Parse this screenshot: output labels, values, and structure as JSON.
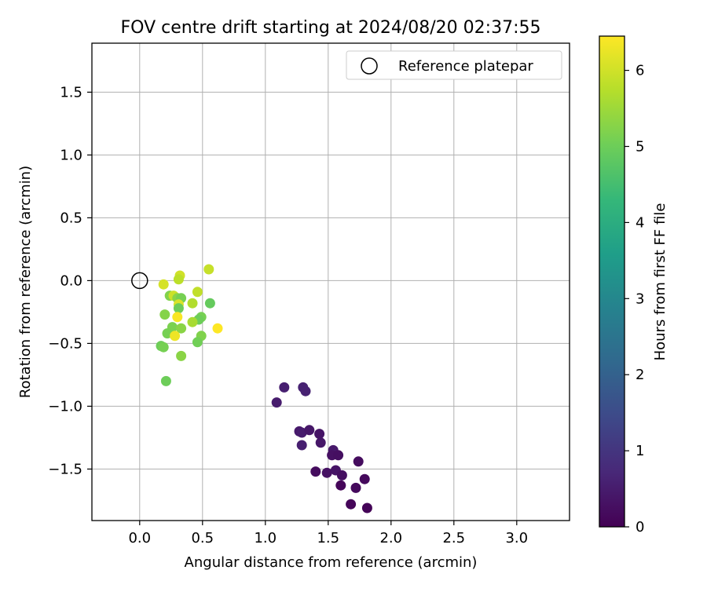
{
  "chart_data": {
    "type": "scatter",
    "title": "FOV centre drift starting at 2024/08/20 02:37:55",
    "xlabel": "Angular distance from reference (arcmin)",
    "ylabel": "Rotation from reference (arcmin)",
    "xlim": [
      -0.38,
      3.42
    ],
    "ylim": [
      -1.91,
      1.89
    ],
    "x_ticks": [
      0.0,
      0.5,
      1.0,
      1.5,
      2.0,
      2.5,
      3.0
    ],
    "x_tick_labels": [
      "0.0",
      "0.5",
      "1.0",
      "1.5",
      "2.0",
      "2.5",
      "3.0"
    ],
    "y_ticks": [
      -1.5,
      -1.0,
      -0.5,
      0.0,
      0.5,
      1.0,
      1.5
    ],
    "y_tick_labels": [
      "−1.5",
      "−1.0",
      "−0.5",
      "0.0",
      "0.5",
      "1.0",
      "1.5"
    ],
    "grid": true,
    "legend": {
      "position": "upper-right",
      "entries": [
        {
          "label": "Reference platepar",
          "marker": "open-circle"
        }
      ]
    },
    "reference": {
      "x": 0.0,
      "y": 0.0
    },
    "colorbar": {
      "label": "Hours from first FF file",
      "colormap": "viridis",
      "range": [
        0,
        6.45
      ],
      "ticks": [
        0,
        1,
        2,
        3,
        4,
        5,
        6
      ],
      "tick_labels": [
        "0",
        "1",
        "2",
        "3",
        "4",
        "5",
        "6"
      ],
      "stops": [
        "#440154",
        "#482878",
        "#3e4989",
        "#31688e",
        "#26828e",
        "#1f9e89",
        "#35b779",
        "#6ece58",
        "#b5de2b",
        "#fde725"
      ]
    },
    "points": [
      {
        "x": 1.09,
        "y": -0.97,
        "hours": 0.5
      },
      {
        "x": 1.15,
        "y": -0.85,
        "hours": 0.55
      },
      {
        "x": 1.3,
        "y": -0.85,
        "hours": 0.6
      },
      {
        "x": 1.32,
        "y": -0.88,
        "hours": 0.6
      },
      {
        "x": 1.27,
        "y": -1.2,
        "hours": 0.45
      },
      {
        "x": 1.29,
        "y": -1.21,
        "hours": 0.5
      },
      {
        "x": 1.35,
        "y": -1.19,
        "hours": 0.4
      },
      {
        "x": 1.29,
        "y": -1.31,
        "hours": 0.55
      },
      {
        "x": 1.43,
        "y": -1.22,
        "hours": 0.35
      },
      {
        "x": 1.44,
        "y": -1.29,
        "hours": 0.4
      },
      {
        "x": 1.54,
        "y": -1.35,
        "hours": 0.45
      },
      {
        "x": 1.53,
        "y": -1.39,
        "hours": 0.3
      },
      {
        "x": 1.58,
        "y": -1.39,
        "hours": 0.25
      },
      {
        "x": 1.4,
        "y": -1.52,
        "hours": 0.2
      },
      {
        "x": 1.49,
        "y": -1.53,
        "hours": 0.3
      },
      {
        "x": 1.56,
        "y": -1.51,
        "hours": 0.35
      },
      {
        "x": 1.61,
        "y": -1.55,
        "hours": 0.25
      },
      {
        "x": 1.74,
        "y": -1.44,
        "hours": 0.2
      },
      {
        "x": 1.79,
        "y": -1.58,
        "hours": 0.15
      },
      {
        "x": 1.6,
        "y": -1.63,
        "hours": 0.1
      },
      {
        "x": 1.72,
        "y": -1.65,
        "hours": 0.15
      },
      {
        "x": 1.68,
        "y": -1.78,
        "hours": 0.1
      },
      {
        "x": 1.81,
        "y": -1.81,
        "hours": 0.05
      },
      {
        "x": 0.55,
        "y": 0.09,
        "hours": 5.9
      },
      {
        "x": 0.32,
        "y": 0.04,
        "hours": 6.0
      },
      {
        "x": 0.31,
        "y": 0.01,
        "hours": 5.8
      },
      {
        "x": 0.19,
        "y": -0.03,
        "hours": 6.05
      },
      {
        "x": 0.46,
        "y": -0.09,
        "hours": 5.85
      },
      {
        "x": 0.24,
        "y": -0.12,
        "hours": 5.2
      },
      {
        "x": 0.27,
        "y": -0.12,
        "hours": 5.95
      },
      {
        "x": 0.3,
        "y": -0.14,
        "hours": 5.3
      },
      {
        "x": 0.33,
        "y": -0.14,
        "hours": 5.1
      },
      {
        "x": 0.56,
        "y": -0.18,
        "hours": 4.9
      },
      {
        "x": 0.42,
        "y": -0.18,
        "hours": 5.7
      },
      {
        "x": 0.31,
        "y": -0.19,
        "hours": 6.1
      },
      {
        "x": 0.31,
        "y": -0.22,
        "hours": 5.0
      },
      {
        "x": 0.2,
        "y": -0.27,
        "hours": 5.25
      },
      {
        "x": 0.3,
        "y": -0.29,
        "hours": 6.4
      },
      {
        "x": 0.49,
        "y": -0.29,
        "hours": 5.1
      },
      {
        "x": 0.47,
        "y": -0.31,
        "hours": 5.0
      },
      {
        "x": 0.42,
        "y": -0.33,
        "hours": 5.6
      },
      {
        "x": 0.26,
        "y": -0.37,
        "hours": 5.15
      },
      {
        "x": 0.33,
        "y": -0.38,
        "hours": 5.3
      },
      {
        "x": 0.62,
        "y": -0.38,
        "hours": 6.45
      },
      {
        "x": 0.22,
        "y": -0.42,
        "hours": 5.1
      },
      {
        "x": 0.49,
        "y": -0.44,
        "hours": 5.2
      },
      {
        "x": 0.28,
        "y": -0.44,
        "hours": 6.3
      },
      {
        "x": 0.46,
        "y": -0.49,
        "hours": 5.05
      },
      {
        "x": 0.17,
        "y": -0.52,
        "hours": 5.0
      },
      {
        "x": 0.19,
        "y": -0.53,
        "hours": 5.1
      },
      {
        "x": 0.33,
        "y": -0.6,
        "hours": 5.3
      },
      {
        "x": 0.21,
        "y": -0.8,
        "hours": 5.0
      }
    ]
  }
}
